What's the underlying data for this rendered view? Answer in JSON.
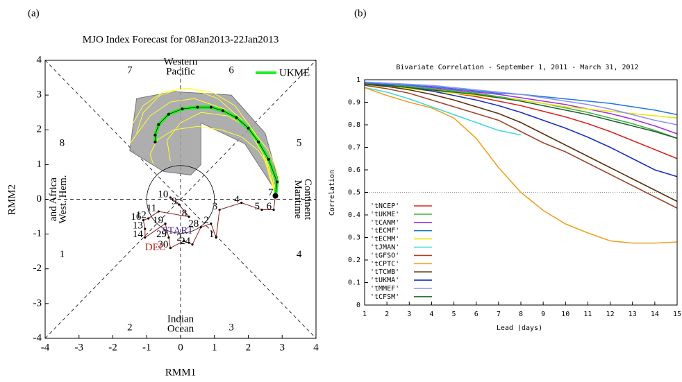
{
  "chart_data": [
    {
      "type": "phase",
      "panel_label": "(a)",
      "title": "MJO Index Forecast for 08Jan2013-22Jan2013",
      "x_label": "RMM1",
      "y_label": "RMM2",
      "xlim": [
        -4,
        4
      ],
      "ylim": [
        -4,
        4
      ],
      "xticks": [
        -4,
        -3,
        -2,
        -1,
        0,
        1,
        2,
        3,
        4
      ],
      "yticks": [
        -4,
        -3,
        -2,
        -1,
        0,
        1,
        2,
        3,
        4
      ],
      "spread": {
        "color": "#a0a0a0",
        "x": [
          -1.5,
          -1.3,
          -0.2,
          1.5,
          2.5,
          2.9,
          2.7,
          1.9,
          0.6,
          0.6,
          0.3,
          -0.5
        ],
        "y": [
          1.4,
          2.9,
          3.1,
          3.0,
          1.9,
          0.5,
          0.4,
          1.6,
          2.2,
          1.0,
          0.7,
          0.8
        ]
      },
      "members": [
        {
          "color": "#ffff33",
          "x": [
            2.8,
            2.6,
            2.2,
            1.6,
            0.9,
            0.1,
            -0.6,
            -1.1,
            -1.3
          ],
          "y": [
            0.1,
            1.0,
            1.9,
            2.7,
            3.1,
            3.2,
            3.0,
            2.5,
            1.9
          ]
        },
        {
          "color": "#ffff33",
          "x": [
            2.8,
            2.7,
            2.3,
            1.8,
            1.2,
            0.5,
            -0.2,
            -0.7,
            -0.9,
            -0.8
          ],
          "y": [
            0.1,
            0.8,
            1.4,
            1.8,
            2.0,
            2.1,
            2.0,
            1.7,
            1.3,
            1.0
          ]
        },
        {
          "color": "#ffff33",
          "x": [
            2.8,
            2.4,
            1.8,
            1.1,
            0.3,
            -0.5,
            -1.1,
            -1.4
          ],
          "y": [
            0.1,
            1.4,
            2.3,
            2.9,
            3.2,
            3.1,
            2.7,
            2.2
          ]
        },
        {
          "color": "#ffff33",
          "x": [
            2.8,
            2.9,
            2.6,
            2.1,
            1.4,
            0.6,
            0.0,
            -0.4,
            -0.3
          ],
          "y": [
            0.1,
            0.7,
            1.4,
            2.0,
            2.4,
            2.5,
            2.2,
            1.7,
            1.1
          ]
        },
        {
          "color": "#ffff33",
          "x": [
            2.8,
            2.5,
            2.0,
            1.3,
            0.4,
            -0.3,
            -0.9,
            -1.5
          ],
          "y": [
            0.1,
            1.2,
            2.0,
            2.6,
            2.9,
            2.8,
            2.4,
            1.6
          ]
        }
      ],
      "series": [
        {
          "name": "UKME",
          "color": "#22ee22",
          "x": [
            2.8,
            2.85,
            2.6,
            2.3,
            2.0,
            1.65,
            1.25,
            0.9,
            0.5,
            0.05,
            -0.35,
            -0.65,
            -0.75,
            -0.75
          ],
          "y": [
            0.1,
            0.5,
            1.15,
            1.65,
            2.05,
            2.35,
            2.55,
            2.65,
            2.65,
            2.6,
            2.45,
            2.15,
            1.85,
            1.65
          ]
        }
      ],
      "observed": {
        "color": "#8b1a1a",
        "x": [
          -0.3,
          -0.05,
          0.25,
          -0.65,
          -0.95,
          -1.1,
          -1.05,
          -1.05,
          -0.45,
          -0.35,
          -0.3,
          0.1,
          0.35,
          0.6,
          0.9,
          1.05,
          1.15,
          1.8,
          2.4,
          2.75,
          2.8
        ],
        "y": [
          0.05,
          -0.15,
          -0.5,
          -0.35,
          -0.55,
          -0.6,
          -0.85,
          -1.1,
          -0.7,
          -1.1,
          -1.4,
          -1.2,
          -1.3,
          -0.8,
          -0.7,
          -1.1,
          -0.3,
          -0.1,
          -0.3,
          -0.3,
          0.1
        ],
        "point_labels": [
          "10",
          "9",
          "8",
          "11",
          "12",
          "16",
          "13",
          "14",
          "19",
          "29",
          "30",
          "2",
          "24",
          "28",
          "2",
          "1",
          "3",
          "4",
          "5",
          "6",
          "7"
        ]
      },
      "phase_labels": [
        "1",
        "2",
        "3",
        "4",
        "5",
        "6",
        "7",
        "8"
      ],
      "region_labels": [
        [
          "Western",
          "Pacific"
        ],
        [
          "Maritime",
          "Continent"
        ],
        [
          "Indian",
          "Ocean"
        ],
        [
          "West. Hem.",
          "and Africa"
        ]
      ],
      "annotations": [
        "START",
        "DEC"
      ]
    },
    {
      "type": "line",
      "panel_label": "(b)",
      "title": "Bivariate Correlation - September 1, 2011 - March 31, 2012",
      "x_label": "Lead (days)",
      "y_label": "Correlation",
      "xlim": [
        1,
        15
      ],
      "ylim": [
        0,
        1
      ],
      "xticks": [
        1,
        2,
        3,
        4,
        5,
        6,
        7,
        8,
        9,
        10,
        11,
        12,
        13,
        14,
        15
      ],
      "yticks": [
        0,
        0.1,
        0.2,
        0.3,
        0.4,
        0.5,
        0.6,
        0.7,
        0.8,
        0.9,
        1
      ],
      "hline": 0.5,
      "x": [
        1,
        2,
        3,
        4,
        5,
        6,
        7,
        8,
        9,
        10,
        11,
        12,
        13,
        14,
        15
      ],
      "series": [
        {
          "name": "'tNCEP'",
          "color": "#e02020",
          "values": [
            0.98,
            0.975,
            0.965,
            0.955,
            0.94,
            0.925,
            0.905,
            0.885,
            0.86,
            0.835,
            0.805,
            0.77,
            0.73,
            0.69,
            0.65
          ]
        },
        {
          "name": "'tUKME'",
          "color": "#40b040",
          "values": [
            0.985,
            0.98,
            0.97,
            0.96,
            0.95,
            0.94,
            0.925,
            0.91,
            0.895,
            0.875,
            0.855,
            0.83,
            0.805,
            0.775,
            0.74
          ]
        },
        {
          "name": "'tCANM'",
          "color": "#a030e0",
          "values": [
            0.985,
            0.98,
            0.975,
            0.965,
            0.955,
            0.945,
            0.935,
            0.92,
            0.905,
            0.89,
            0.87,
            0.85,
            0.825,
            0.795,
            0.76
          ]
        },
        {
          "name": "'tECMF'",
          "color": "#1e78e0",
          "values": [
            0.985,
            0.98,
            0.975,
            0.97,
            0.96,
            0.95,
            0.94,
            0.935,
            0.925,
            0.915,
            0.905,
            0.895,
            0.88,
            0.865,
            0.845
          ]
        },
        {
          "name": "'tECMM'",
          "color": "#e8e800",
          "values": [
            0.975,
            0.97,
            0.96,
            0.95,
            0.94,
            0.93,
            0.92,
            0.91,
            0.895,
            0.88,
            0.87,
            0.86,
            0.85,
            0.84,
            0.83
          ]
        },
        {
          "name": "'tJMAN'",
          "color": "#40d8e0",
          "values": [
            0.965,
            0.945,
            0.915,
            0.88,
            0.845,
            0.81,
            0.775,
            0.755,
            null,
            null,
            null,
            null,
            null,
            null,
            null
          ]
        },
        {
          "name": "'tGFSO'",
          "color": "#a0462a",
          "values": [
            0.975,
            0.96,
            0.94,
            0.91,
            0.88,
            0.85,
            0.82,
            0.77,
            0.72,
            0.68,
            0.63,
            0.58,
            0.53,
            0.48,
            0.43
          ]
        },
        {
          "name": "'tCPTC'",
          "color": "#f0a020",
          "values": [
            0.965,
            0.93,
            0.9,
            0.875,
            0.83,
            0.74,
            0.61,
            0.5,
            0.42,
            0.36,
            0.32,
            0.285,
            0.275,
            0.275,
            0.28
          ]
        },
        {
          "name": "'tTCWB'",
          "color": "#5a3010",
          "values": [
            0.98,
            0.97,
            0.955,
            0.935,
            0.91,
            0.88,
            0.85,
            0.81,
            0.76,
            0.71,
            0.66,
            0.61,
            0.56,
            0.51,
            0.46
          ]
        },
        {
          "name": "'tUKMA'",
          "color": "#1830c0",
          "values": [
            0.98,
            0.975,
            0.965,
            0.95,
            0.93,
            0.91,
            0.885,
            0.855,
            0.82,
            0.785,
            0.745,
            0.7,
            0.65,
            0.6,
            0.57
          ]
        },
        {
          "name": "'tMMEF'",
          "color": "#9090f0",
          "values": [
            0.99,
            0.985,
            0.98,
            0.975,
            0.965,
            0.955,
            0.945,
            0.935,
            0.92,
            0.905,
            0.89,
            0.87,
            0.845,
            0.82,
            0.8
          ]
        },
        {
          "name": "'tCFSM'",
          "color": "#206030",
          "values": [
            0.98,
            0.975,
            0.965,
            0.955,
            0.945,
            0.935,
            0.92,
            0.905,
            0.885,
            0.865,
            0.845,
            0.82,
            0.795,
            0.77,
            0.74
          ]
        }
      ]
    }
  ]
}
